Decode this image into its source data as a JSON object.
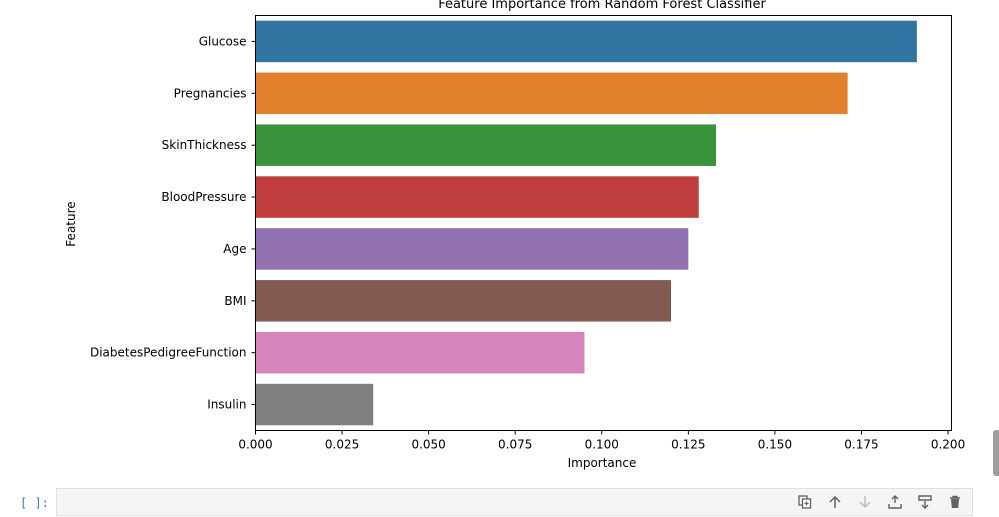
{
  "chart_data": {
    "type": "bar",
    "orientation": "horizontal",
    "title": "Feature Importance from Random Forest Classifier",
    "xlabel": "Importance",
    "ylabel": "Feature",
    "categories": [
      "Glucose",
      "Pregnancies",
      "SkinThickness",
      "BloodPressure",
      "Age",
      "BMI",
      "DiabetesPedigreeFunction",
      "Insulin"
    ],
    "values": [
      0.191,
      0.171,
      0.133,
      0.128,
      0.125,
      0.12,
      0.095,
      0.034
    ],
    "colors": [
      "#3274a1",
      "#e1812c",
      "#3a923a",
      "#c03d3e",
      "#9372b2",
      "#845b53",
      "#d684bd",
      "#7f7f7f"
    ],
    "xlim": [
      0.0,
      0.201
    ],
    "xticks": [
      "0.000",
      "0.025",
      "0.050",
      "0.075",
      "0.100",
      "0.125",
      "0.150",
      "0.175",
      "0.200"
    ],
    "grid": false
  },
  "notebook": {
    "prompt": "[ ]:",
    "toolbar": [
      "duplicate-icon",
      "move-up-icon",
      "move-down-icon",
      "insert-above-icon",
      "insert-below-icon",
      "delete-icon"
    ]
  }
}
